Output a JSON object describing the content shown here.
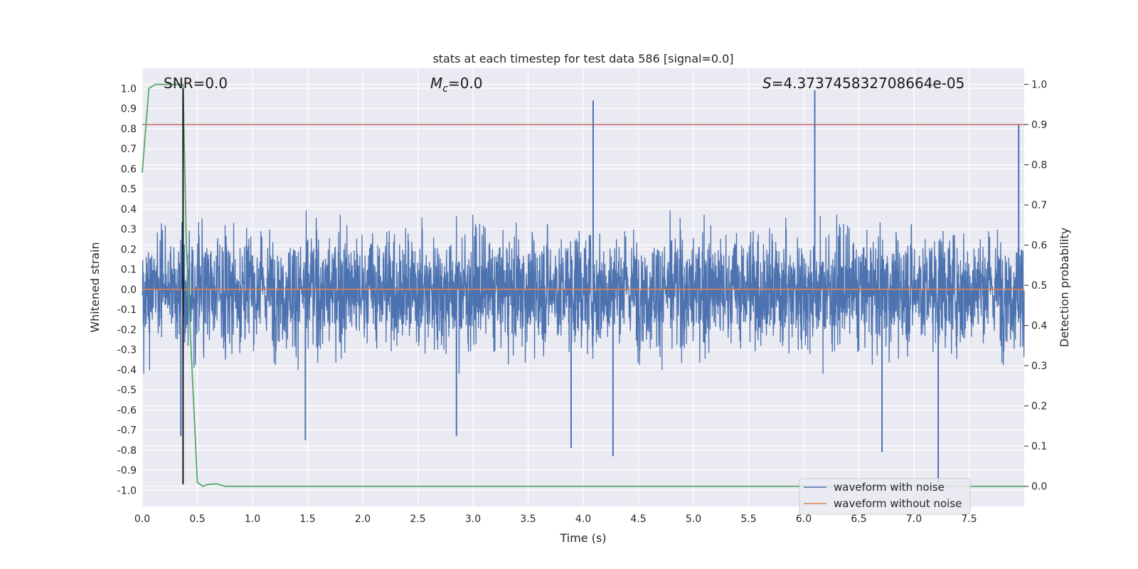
{
  "chart_data": {
    "type": "line",
    "title": "stats at each timestep for test data 586 [signal=0.0]",
    "xlabel": "Time (s)",
    "ylabel_left": "Whitened strain",
    "ylabel_right": "Detection probability",
    "xlim": [
      0.0,
      8.0
    ],
    "ylim_left": [
      -1.08,
      1.1
    ],
    "ylim_right": [
      -0.05,
      1.04
    ],
    "xticks": [
      "0.0",
      "0.5",
      "1.0",
      "1.5",
      "2.0",
      "2.5",
      "3.0",
      "3.5",
      "4.0",
      "4.5",
      "5.0",
      "5.5",
      "6.0",
      "6.5",
      "7.0",
      "7.5"
    ],
    "yticks_left": [
      "1.0",
      "0.9",
      "0.8",
      "0.7",
      "0.6",
      "0.5",
      "0.4",
      "0.3",
      "0.2",
      "0.1",
      "0.0",
      "-0.1",
      "-0.2",
      "-0.3",
      "-0.4",
      "-0.5",
      "-0.6",
      "-0.7",
      "-0.8",
      "-0.9",
      "-1.0"
    ],
    "yticks_right": [
      "1.0",
      "0.9",
      "0.8",
      "0.7",
      "0.6",
      "0.5",
      "0.4",
      "0.3",
      "0.2",
      "0.1",
      "0.0"
    ],
    "annotations": {
      "snr": "SNR=0.0",
      "mc_symbol": "M",
      "mc_sub": "c",
      "mc_value": "=0.0",
      "s_symbol": "S",
      "s_value": "=4.373745832708664e-05"
    },
    "legend": {
      "position": "lower-right",
      "entries": [
        "waveform with noise",
        "waveform without noise"
      ]
    },
    "colors": {
      "noise": "#4c72b0",
      "clean": "#dd8452",
      "probability": "#55a868",
      "threshold": "#c44e52",
      "marker": "#000000",
      "background": "#eaeaf2",
      "grid": "#ffffff"
    },
    "series": [
      {
        "name": "waveform with noise",
        "axis": "left",
        "kind": "dense-noise",
        "typical_envelope": [
          -0.42,
          0.42
        ],
        "spikes": [
          {
            "x": 4.09,
            "y": 0.94
          },
          {
            "x": 6.1,
            "y": 0.99
          },
          {
            "x": 7.95,
            "y": 0.82
          },
          {
            "x": 7.22,
            "y": -0.97
          },
          {
            "x": 4.27,
            "y": -0.83
          },
          {
            "x": 6.71,
            "y": -0.81
          },
          {
            "x": 3.89,
            "y": -0.79
          },
          {
            "x": 1.48,
            "y": -0.75
          },
          {
            "x": 0.35,
            "y": -0.73
          },
          {
            "x": 2.85,
            "y": -0.73
          }
        ]
      },
      {
        "name": "waveform without noise",
        "axis": "left",
        "values_constant": 0.0
      },
      {
        "name": "detection probability",
        "axis": "right",
        "x": [
          0.0,
          0.06,
          0.12,
          0.2,
          0.3,
          0.37,
          0.4,
          0.45,
          0.5,
          0.55,
          0.6,
          0.68,
          0.75,
          8.0
        ],
        "y": [
          0.78,
          0.99,
          1.0,
          1.0,
          1.0,
          1.0,
          0.6,
          0.3,
          0.01,
          0.0,
          0.005,
          0.006,
          0.0,
          0.0
        ]
      },
      {
        "name": "threshold",
        "axis": "right",
        "y": 0.9
      },
      {
        "name": "detection time marker",
        "axis": "left",
        "x": 0.37,
        "y_range": [
          -0.97,
          1.0
        ]
      }
    ]
  }
}
